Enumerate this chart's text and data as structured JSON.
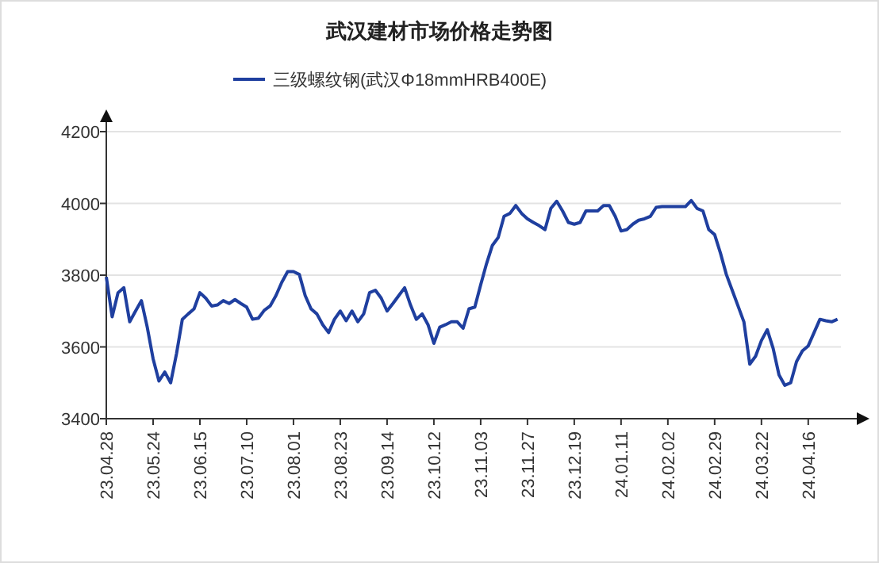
{
  "chart_data": {
    "type": "line",
    "title": "武汉建材市场价格走势图",
    "categories": [
      "23.04.28",
      null,
      null,
      null,
      null,
      null,
      null,
      null,
      "23.05.24",
      null,
      null,
      null,
      null,
      null,
      null,
      null,
      "23.06.15",
      null,
      null,
      null,
      null,
      null,
      null,
      null,
      "23.07.10",
      null,
      null,
      null,
      null,
      null,
      null,
      null,
      "23.08.01",
      null,
      null,
      null,
      null,
      null,
      null,
      null,
      "23.08.23",
      null,
      null,
      null,
      null,
      null,
      null,
      null,
      "23.09.14",
      null,
      null,
      null,
      null,
      null,
      null,
      null,
      "23.10.12",
      null,
      null,
      null,
      null,
      null,
      null,
      null,
      "23.11.03",
      null,
      null,
      null,
      null,
      null,
      null,
      null,
      "23.11.27",
      null,
      null,
      null,
      null,
      null,
      null,
      null,
      "23.12.19",
      null,
      null,
      null,
      null,
      null,
      null,
      null,
      "24.01.11",
      null,
      null,
      null,
      null,
      null,
      null,
      null,
      "24.02.02",
      null,
      null,
      null,
      null,
      null,
      null,
      null,
      "24.02.29",
      null,
      null,
      null,
      null,
      null,
      null,
      null,
      "24.03.22",
      null,
      null,
      null,
      null,
      null,
      null,
      null,
      "24.04.16",
      null,
      null,
      null,
      null,
      null
    ],
    "series": [
      {
        "name": "三级螺纹钢(武汉Φ18mmHRB400E)",
        "color": "#1f3f9f",
        "values": [
          3795,
          3684,
          3751,
          3765,
          3670,
          3700,
          3729,
          3655,
          3567,
          3505,
          3530,
          3500,
          3581,
          3677,
          3692,
          3706,
          3751,
          3736,
          3714,
          3717,
          3729,
          3721,
          3732,
          3721,
          3711,
          3677,
          3680,
          3702,
          3714,
          3743,
          3780,
          3810,
          3810,
          3802,
          3743,
          3706,
          3692,
          3662,
          3640,
          3677,
          3700,
          3673,
          3700,
          3670,
          3692,
          3751,
          3758,
          3736,
          3700,
          3721,
          3743,
          3765,
          3717,
          3677,
          3692,
          3662,
          3610,
          3655,
          3662,
          3670,
          3670,
          3652,
          3706,
          3711,
          3773,
          3832,
          3883,
          3905,
          3964,
          3972,
          3994,
          3972,
          3957,
          3947,
          3938,
          3927,
          3986,
          4006,
          3979,
          3947,
          3942,
          3947,
          3979,
          3979,
          3979,
          3994,
          3994,
          3964,
          3923,
          3927,
          3942,
          3953,
          3957,
          3964,
          3989,
          3991,
          3991,
          3991,
          3991,
          3991,
          4008,
          3986,
          3979,
          3927,
          3913,
          3861,
          3802,
          3758,
          3714,
          3670,
          3552,
          3574,
          3618,
          3648,
          3596,
          3522,
          3493,
          3500,
          3559,
          3589,
          3603,
          3640,
          3677,
          3673,
          3670,
          3677
        ]
      }
    ],
    "ylim": [
      3400,
      4200
    ],
    "yticks": [
      3400,
      3600,
      3800,
      4000,
      4200
    ],
    "grid": "y",
    "legend": "top",
    "line_style": "solid",
    "marker": "none"
  }
}
